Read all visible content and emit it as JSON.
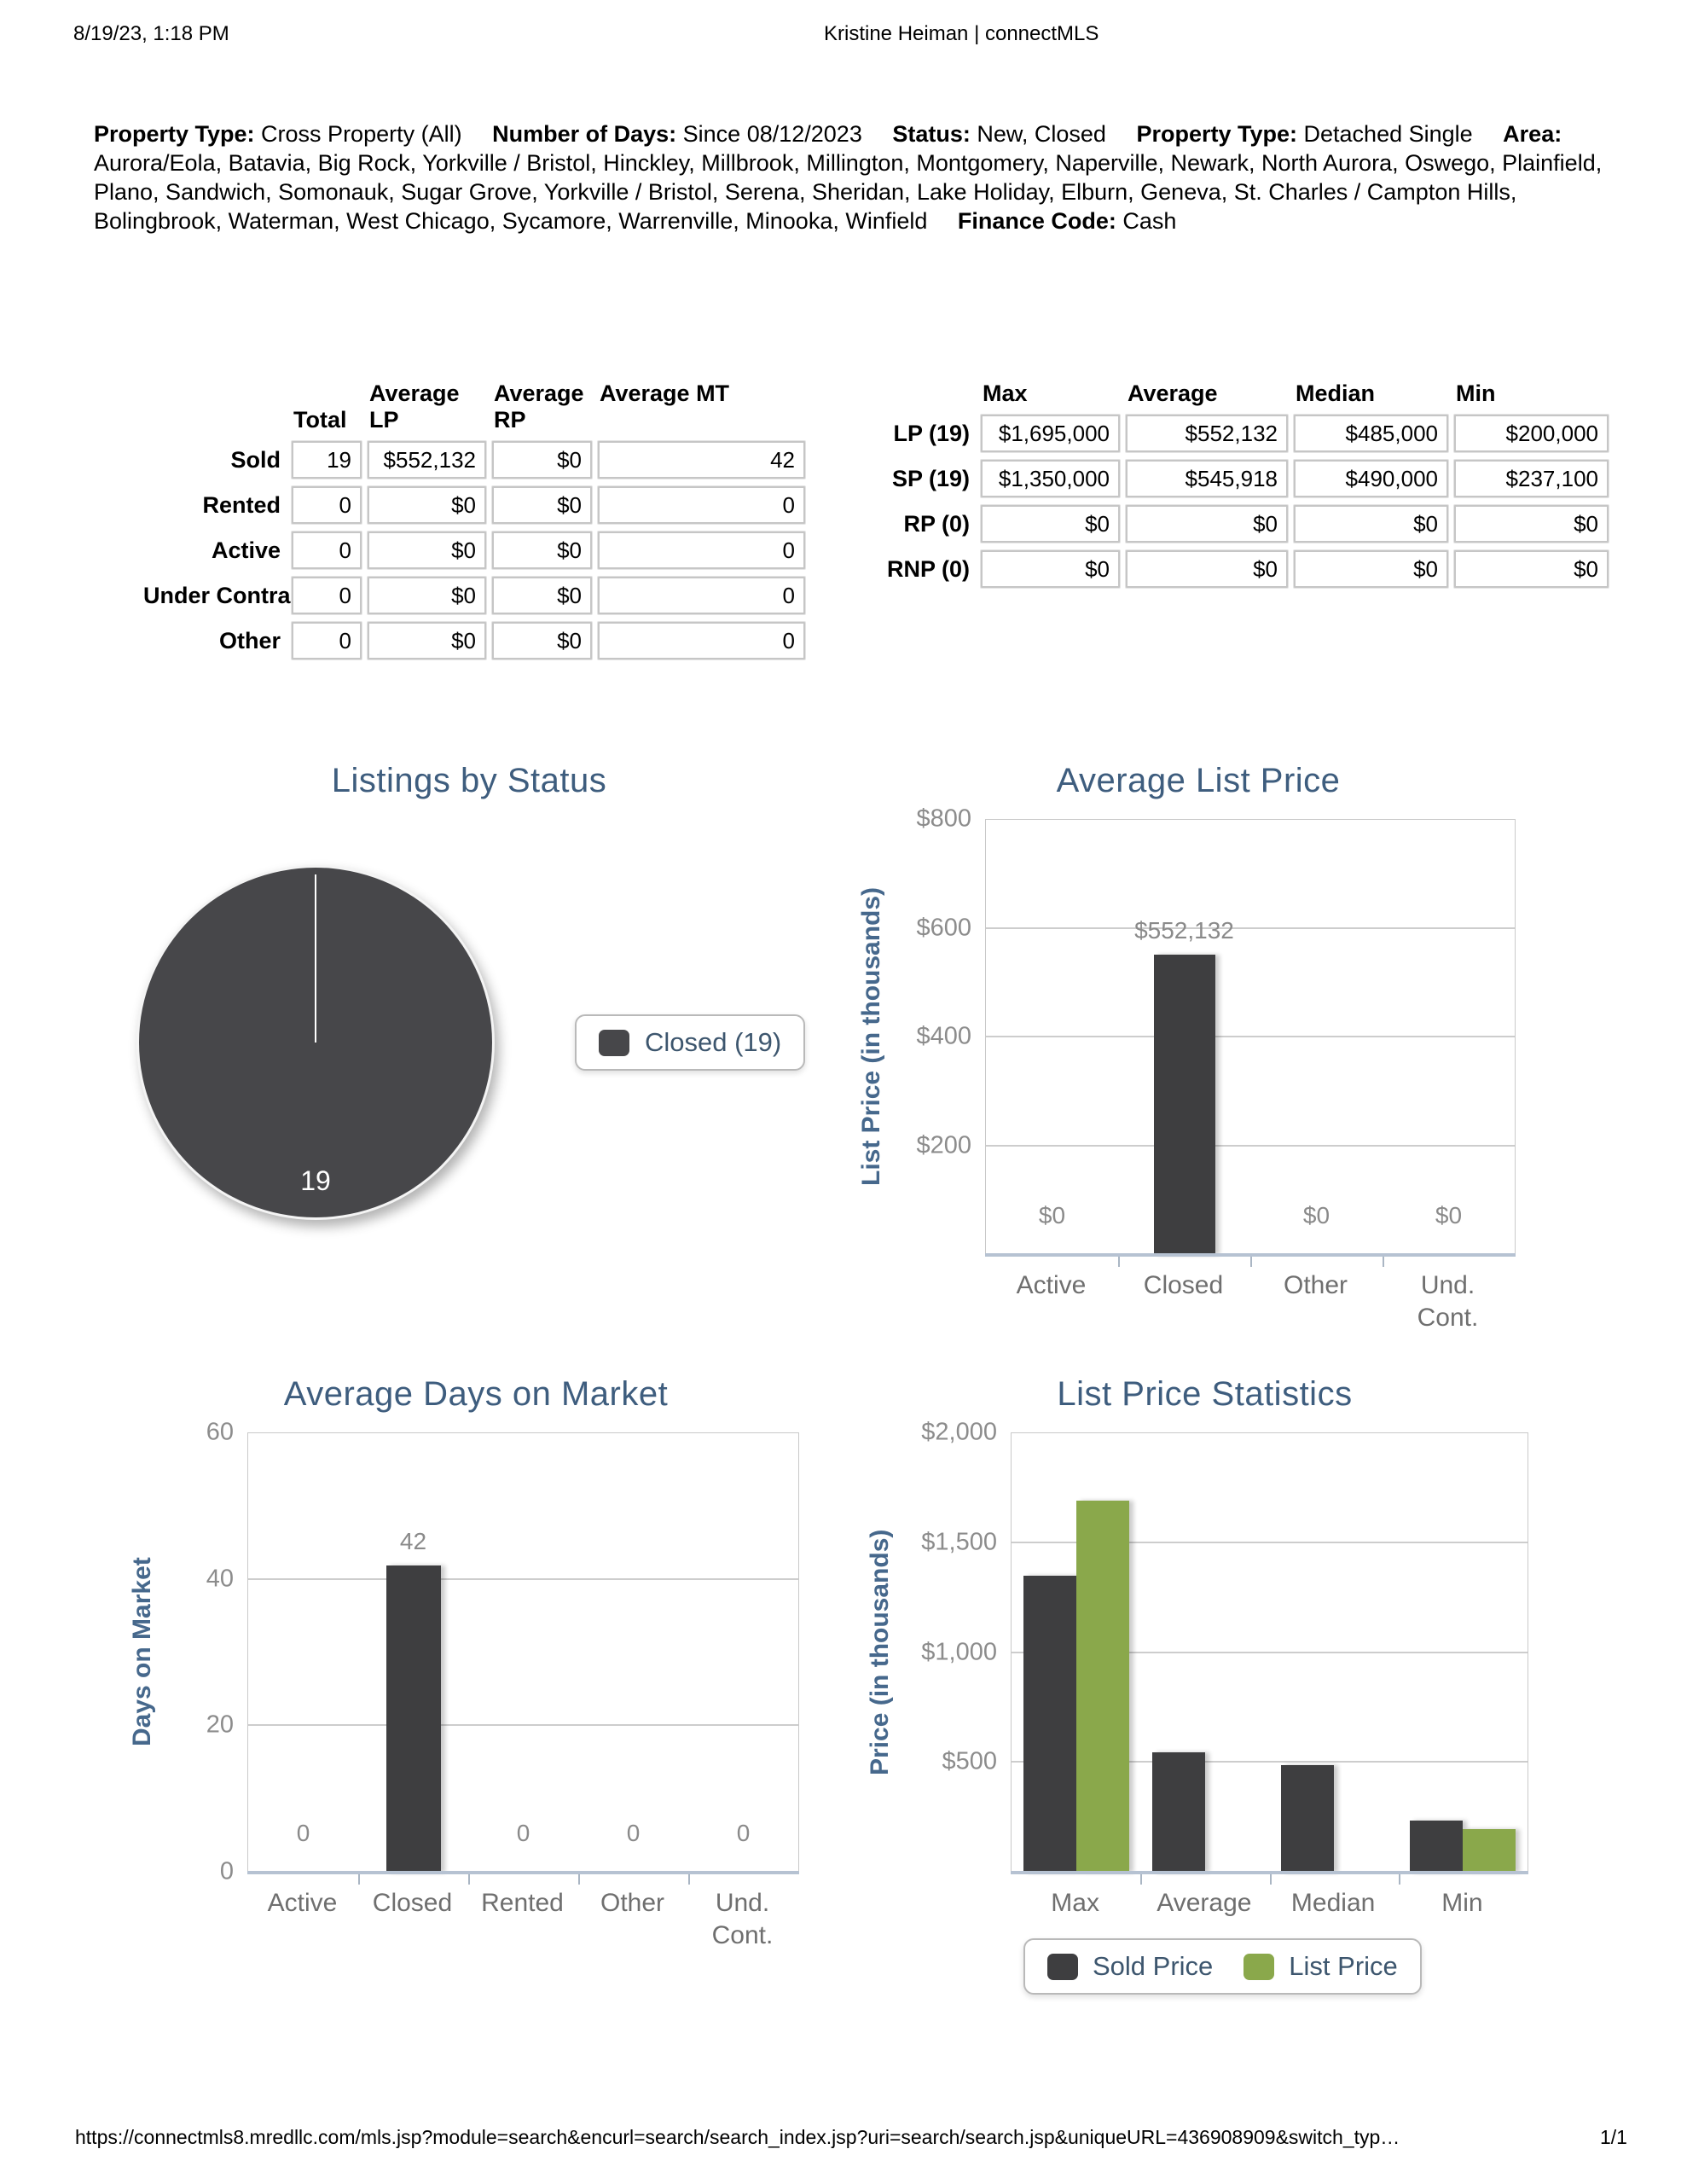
{
  "header": {
    "datetime": "8/19/23, 1:18 PM",
    "title": "Kristine Heiman | connectMLS"
  },
  "criteria": {
    "segments": [
      {
        "label": "Property Type:",
        "value": "Cross Property (All)"
      },
      {
        "label": "Number of Days:",
        "value": "Since 08/12/2023"
      },
      {
        "label": "Status:",
        "value": "New, Closed"
      },
      {
        "label": "Property Type:",
        "value": "Detached Single"
      },
      {
        "label": "Area:",
        "value": "Aurora/Eola, Batavia, Big Rock, Yorkville / Bristol, Hinckley, Millbrook, Millington, Montgomery, Naperville, Newark, North Aurora, Oswego, Plainfield, Plano, Sandwich, Somonauk, Sugar Grove, Yorkville / Bristol, Serena, Sheridan, Lake Holiday, Elburn, Geneva, St. Charles / Campton Hills, Bolingbrook, Waterman, West Chicago, Sycamore, Warrenville, Minooka, Winfield"
      },
      {
        "label": "Finance Code:",
        "value": "Cash"
      }
    ]
  },
  "status_table": {
    "headers": [
      "Total",
      "Average LP",
      "Average RP",
      "Average MT"
    ],
    "rows": [
      {
        "label": "Sold",
        "values": [
          "19",
          "$552,132",
          "$0",
          "42"
        ]
      },
      {
        "label": "Rented",
        "values": [
          "0",
          "$0",
          "$0",
          "0"
        ]
      },
      {
        "label": "Active",
        "values": [
          "0",
          "$0",
          "$0",
          "0"
        ]
      },
      {
        "label": "Under Contract",
        "values": [
          "0",
          "$0",
          "$0",
          "0"
        ]
      },
      {
        "label": "Other",
        "values": [
          "0",
          "$0",
          "$0",
          "0"
        ]
      }
    ]
  },
  "price_table": {
    "headers": [
      "Max",
      "Average",
      "Median",
      "Min"
    ],
    "rows": [
      {
        "label": "LP (19)",
        "values": [
          "$1,695,000",
          "$552,132",
          "$485,000",
          "$200,000"
        ]
      },
      {
        "label": "SP (19)",
        "values": [
          "$1,350,000",
          "$545,918",
          "$490,000",
          "$237,100"
        ]
      },
      {
        "label": "RP (0)",
        "values": [
          "$0",
          "$0",
          "$0",
          "$0"
        ]
      },
      {
        "label": "RNP (0)",
        "values": [
          "$0",
          "$0",
          "$0",
          "$0"
        ]
      }
    ]
  },
  "chart_data": [
    {
      "type": "pie",
      "title": "Listings by Status",
      "slices": [
        {
          "label": "Closed",
          "value": 19,
          "color": "#47474a",
          "data_label": "19"
        }
      ],
      "legend": [
        {
          "label": "Closed (19)",
          "color": "#47474a"
        }
      ],
      "legend_position": "right"
    },
    {
      "type": "bar",
      "title": "Average List Price",
      "ylabel": "List Price (in thousands)",
      "ylim": [
        0,
        800
      ],
      "grid": true,
      "yticks": [
        {
          "value": 800,
          "label": "$800"
        },
        {
          "value": 600,
          "label": "$600"
        },
        {
          "value": 400,
          "label": "$400"
        },
        {
          "value": 200,
          "label": "$200"
        }
      ],
      "categories": [
        "Active",
        "Closed",
        "Other",
        "Und.\nCont."
      ],
      "values": [
        0,
        552.132,
        0,
        0
      ],
      "data_labels": [
        "$0",
        "$552,132",
        "$0",
        "$0"
      ],
      "bar_color": "#3e3e40"
    },
    {
      "type": "bar",
      "title": "Average Days on Market",
      "ylabel": "Days on Market",
      "ylim": [
        0,
        60
      ],
      "grid": true,
      "yticks": [
        {
          "value": 60,
          "label": "60"
        },
        {
          "value": 40,
          "label": "40"
        },
        {
          "value": 20,
          "label": "20"
        },
        {
          "value": 0,
          "label": "0"
        }
      ],
      "categories": [
        "Active",
        "Closed",
        "Rented",
        "Other",
        "Und.\nCont."
      ],
      "values": [
        0,
        42,
        0,
        0,
        0
      ],
      "data_labels": [
        "0",
        "42",
        "0",
        "0",
        "0"
      ],
      "bar_color": "#3e3e40"
    },
    {
      "type": "grouped_bar",
      "title": "List Price Statistics",
      "ylabel": "Price (in thousands)",
      "ylim": [
        0,
        2000
      ],
      "grid": true,
      "yticks": [
        {
          "value": 2000,
          "label": "$2,000"
        },
        {
          "value": 1500,
          "label": "$1,500"
        },
        {
          "value": 1000,
          "label": "$1,000"
        },
        {
          "value": 500,
          "label": "$500"
        }
      ],
      "categories": [
        "Max",
        "Average",
        "Median",
        "Min"
      ],
      "series": [
        {
          "name": "Sold Price",
          "color": "#3e3e40",
          "values": [
            1350,
            545.918,
            490,
            237.1
          ]
        },
        {
          "name": "List Price",
          "color": "#8aa84b",
          "values": [
            1695,
            null,
            null,
            200
          ]
        }
      ],
      "legend_position": "bottom"
    }
  ],
  "footer": {
    "url": "https://connectmls8.mredllc.com/mls.jsp?module=search&encurl=search/search_index.jsp?uri=search/search.jsp&uniqueURL=436908909&switch_typ…",
    "page": "1/1"
  },
  "colors": {
    "title_text": "#3e5d7e",
    "axis_title_text": "#46688c",
    "tick_text": "#8c8c8c",
    "category_text": "#6f6f6f",
    "legend_text": "#3d566e",
    "bar_dark": "#3e3e40",
    "bar_green": "#8aa84b",
    "axis_line": "#b6c2d2",
    "gridline": "#cdcdcd"
  }
}
